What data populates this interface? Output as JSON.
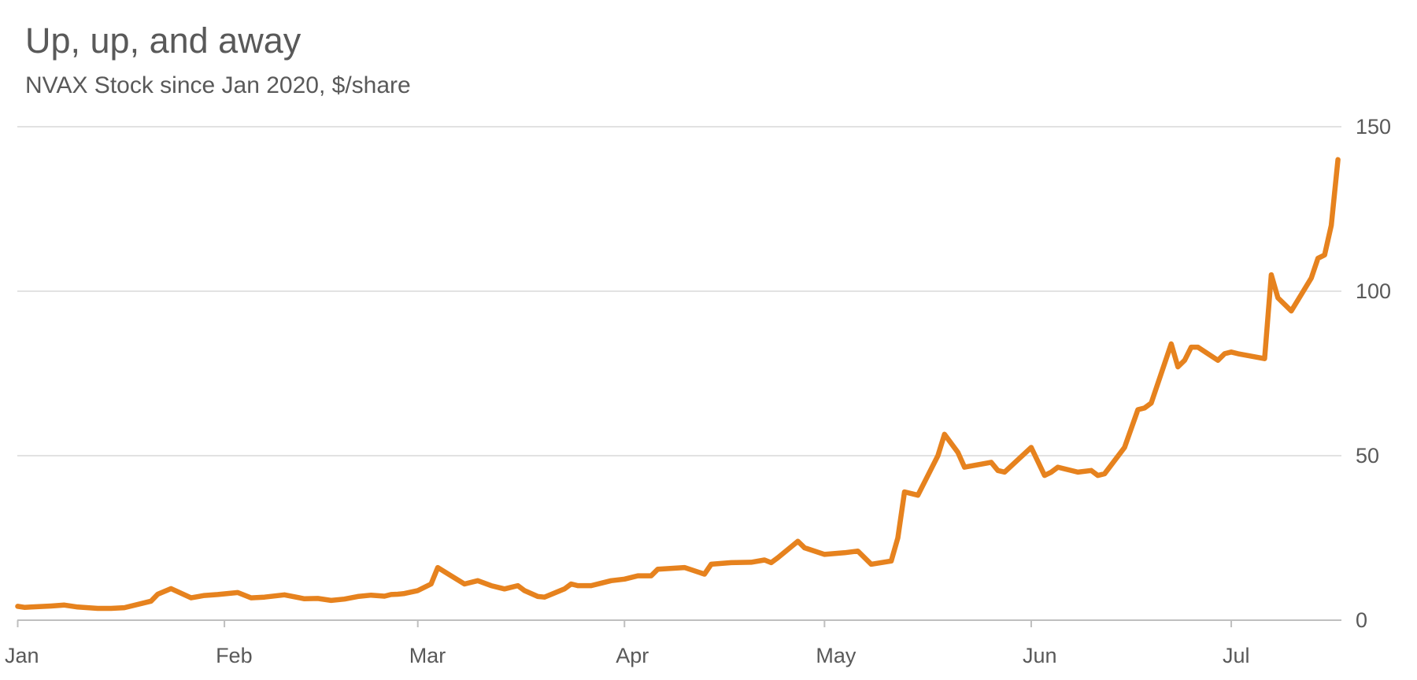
{
  "title": "Up, up, and away",
  "subtitle": "NVAX Stock since Jan 2020, $/share",
  "colors": {
    "line": "#E6821E",
    "grid": "#D9D9D9",
    "axis": "#BFBFBF",
    "text": "#595959"
  },
  "chart_data": {
    "type": "line",
    "title": "Up, up, and away",
    "subtitle": "NVAX Stock since Jan 2020, $/share",
    "xlabel": "",
    "ylabel": "",
    "x_axis": "date",
    "xlim": [
      "2020-01-01",
      "2020-07-21"
    ],
    "ylim": [
      0,
      150
    ],
    "y_ticks": [
      0,
      50,
      100,
      150
    ],
    "y_tick_labels": [
      "0",
      "50",
      "100",
      "150"
    ],
    "x_ticks": [
      "2020-01-01",
      "2020-02-01",
      "2020-03-01",
      "2020-04-01",
      "2020-05-01",
      "2020-06-01",
      "2020-07-01"
    ],
    "x_tick_labels": [
      "Jan",
      "Feb",
      "Mar",
      "Apr",
      "May",
      "Jun",
      "Jul"
    ],
    "y_axis_position": "right",
    "grid": "horizontal",
    "legend": "none",
    "series": [
      {
        "x": [
          "2020-01-01",
          "2020-01-02",
          "2020-01-03",
          "2020-01-06",
          "2020-01-08",
          "2020-01-10",
          "2020-01-13",
          "2020-01-15",
          "2020-01-17",
          "2020-01-21",
          "2020-01-22",
          "2020-01-24",
          "2020-01-27",
          "2020-01-29",
          "2020-01-31",
          "2020-02-03",
          "2020-02-05",
          "2020-02-07",
          "2020-02-10",
          "2020-02-13",
          "2020-02-15",
          "2020-02-17",
          "2020-02-19",
          "2020-02-21",
          "2020-02-23",
          "2020-02-25",
          "2020-02-26",
          "2020-02-27",
          "2020-02-28",
          "2020-03-01",
          "2020-03-03",
          "2020-03-04",
          "2020-03-06",
          "2020-03-08",
          "2020-03-10",
          "2020-03-12",
          "2020-03-14",
          "2020-03-16",
          "2020-03-17",
          "2020-03-19",
          "2020-03-20",
          "2020-03-23",
          "2020-03-24",
          "2020-03-25",
          "2020-03-27",
          "2020-03-30",
          "2020-04-01",
          "2020-04-03",
          "2020-04-05",
          "2020-04-06",
          "2020-04-10",
          "2020-04-13",
          "2020-04-14",
          "2020-04-17",
          "2020-04-20",
          "2020-04-22",
          "2020-04-23",
          "2020-04-24",
          "2020-04-27",
          "2020-04-28",
          "2020-05-01",
          "2020-05-04",
          "2020-05-06",
          "2020-05-08",
          "2020-05-11",
          "2020-05-12",
          "2020-05-13",
          "2020-05-15",
          "2020-05-18",
          "2020-05-19",
          "2020-05-21",
          "2020-05-22",
          "2020-05-26",
          "2020-05-27",
          "2020-05-28",
          "2020-06-01",
          "2020-06-03",
          "2020-06-04",
          "2020-06-05",
          "2020-06-08",
          "2020-06-10",
          "2020-06-11",
          "2020-06-12",
          "2020-06-15",
          "2020-06-17",
          "2020-06-18",
          "2020-06-19",
          "2020-06-22",
          "2020-06-23",
          "2020-06-24",
          "2020-06-25",
          "2020-06-26",
          "2020-06-29",
          "2020-06-30",
          "2020-07-01",
          "2020-07-02",
          "2020-07-06",
          "2020-07-07",
          "2020-07-08",
          "2020-07-10",
          "2020-07-13",
          "2020-07-14",
          "2020-07-15",
          "2020-07-16",
          "2020-07-17"
        ],
        "values": [
          4.2,
          3.9,
          4.0,
          4.3,
          4.6,
          4.0,
          3.6,
          3.6,
          3.8,
          5.8,
          7.9,
          9.6,
          6.8,
          7.5,
          7.8,
          8.4,
          6.8,
          7.0,
          7.7,
          6.5,
          6.6,
          6.0,
          6.4,
          7.2,
          7.6,
          7.3,
          7.8,
          7.9,
          8.1,
          9.0,
          11.0,
          16.0,
          13.5,
          11.0,
          12.0,
          10.5,
          9.5,
          10.5,
          9.0,
          7.2,
          7.0,
          9.5,
          11.0,
          10.5,
          10.5,
          12.0,
          12.5,
          13.5,
          13.5,
          15.5,
          16.0,
          14.0,
          17.0,
          17.5,
          17.6,
          18.3,
          17.5,
          19.0,
          24.0,
          22.0,
          20.0,
          20.5,
          21.0,
          17.0,
          18.0,
          25.0,
          39.0,
          38.0,
          50.0,
          56.5,
          51.0,
          46.5,
          48.0,
          45.5,
          45.0,
          52.5,
          44.0,
          45.0,
          46.5,
          45.0,
          45.5,
          44.0,
          44.5,
          52.5,
          64.0,
          64.5,
          66.0,
          84.0,
          77.0,
          79.0,
          83.0,
          83.0,
          79.0,
          81.0,
          81.5,
          81.0,
          79.5,
          105.0,
          98.0,
          94.0,
          104.0,
          110.0,
          111.0,
          120.0,
          140.0
        ]
      }
    ]
  }
}
